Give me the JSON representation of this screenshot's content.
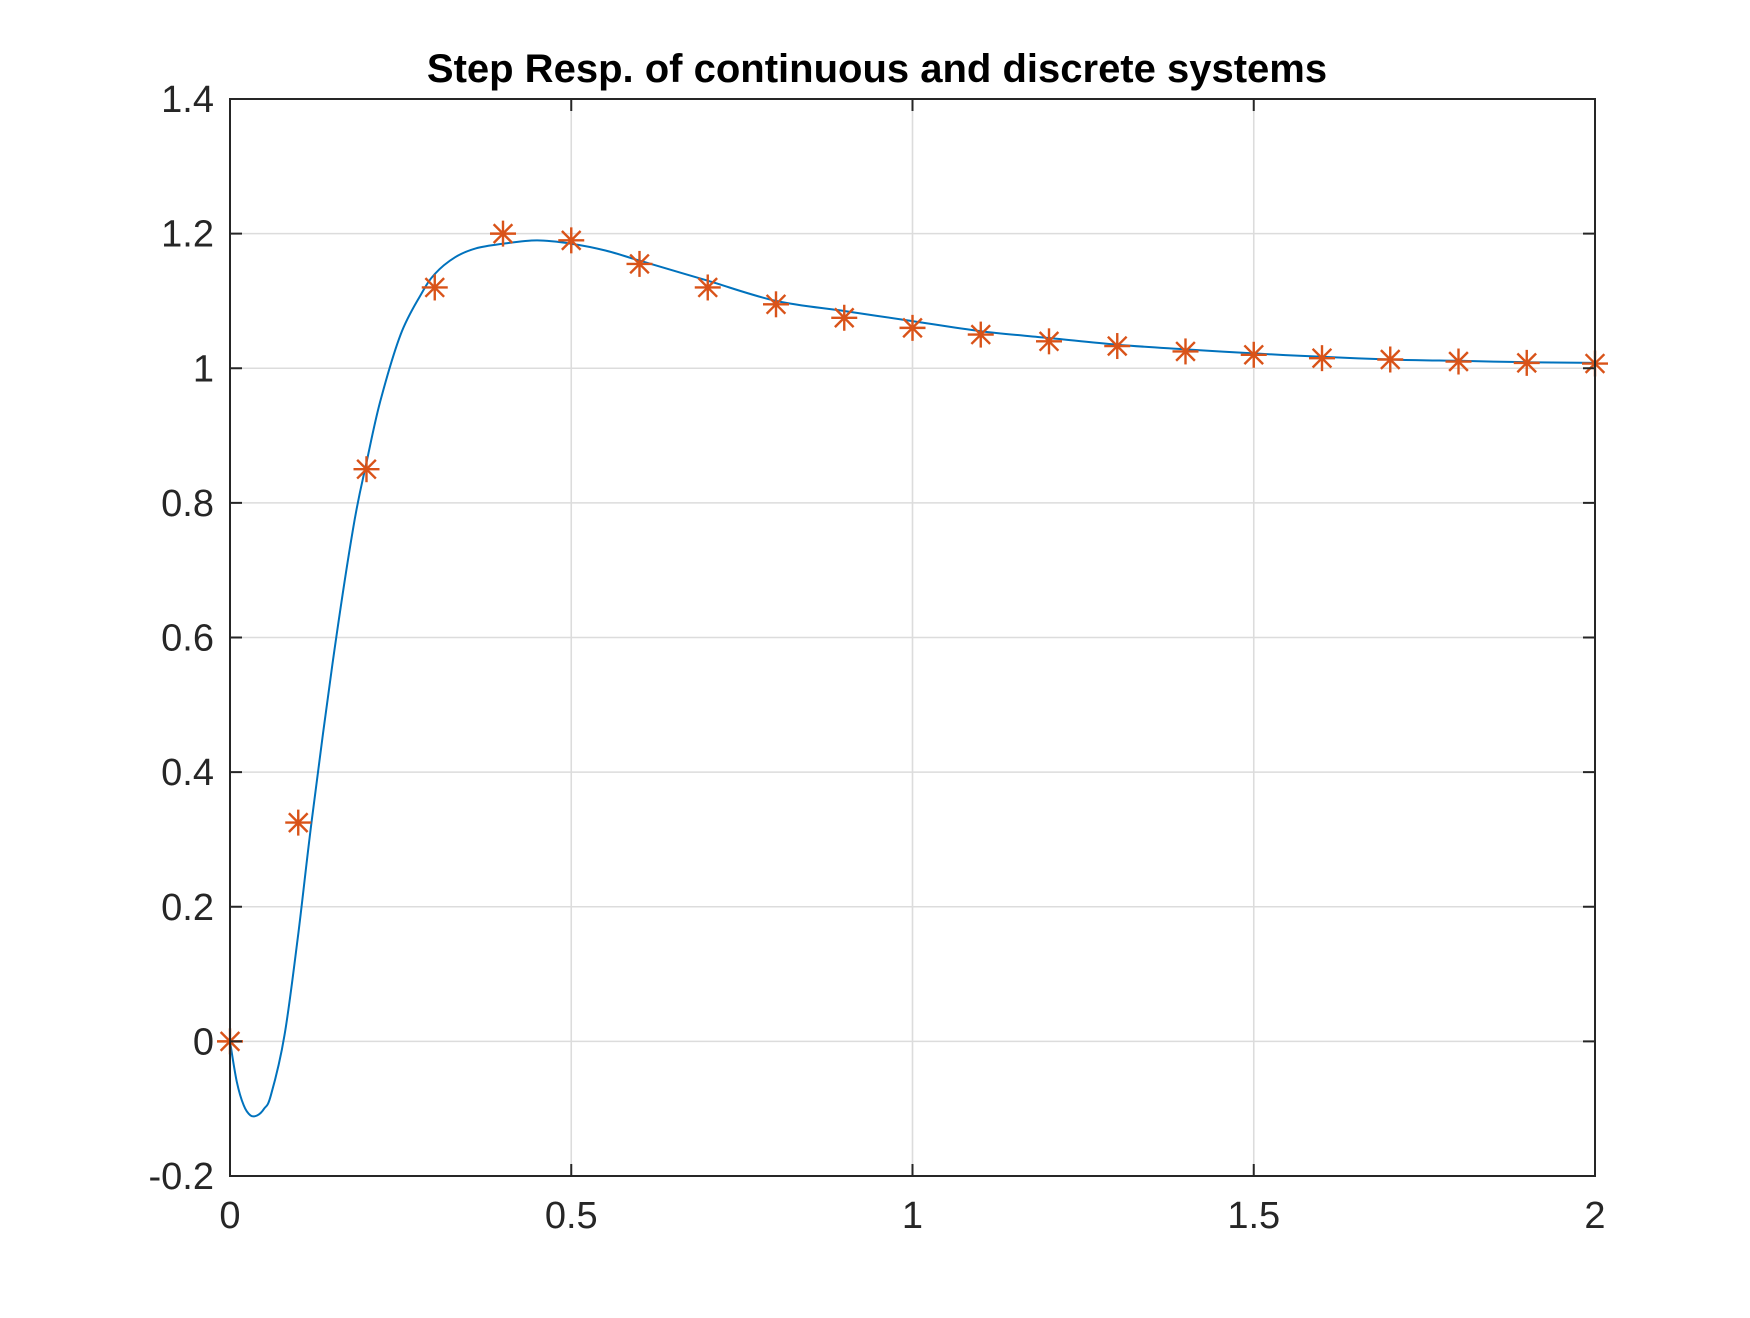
{
  "chart_data": {
    "type": "line",
    "title": "Step Resp.  of continuous and discrete systems",
    "xlabel": "",
    "ylabel": "",
    "xlim": [
      0,
      2
    ],
    "ylim": [
      -0.2,
      1.4
    ],
    "x_ticks": [
      0,
      0.5,
      1,
      1.5,
      2
    ],
    "x_tick_labels": [
      "0",
      "0.5",
      "1",
      "1.5",
      "2"
    ],
    "y_ticks": [
      -0.2,
      0,
      0.2,
      0.4,
      0.6,
      0.8,
      1,
      1.2,
      1.4
    ],
    "y_tick_labels": [
      "-0.2",
      "0",
      "0.2",
      "0.4",
      "0.6",
      "0.8",
      "1",
      "1.2",
      "1.4"
    ],
    "grid": true,
    "legend": "none",
    "series": [
      {
        "type": "line",
        "color": "#0072bd",
        "x": [
          0,
          0.01,
          0.02,
          0.03,
          0.04,
          0.05,
          0.06,
          0.08,
          0.1,
          0.12,
          0.15,
          0.18,
          0.2,
          0.22,
          0.25,
          0.28,
          0.3,
          0.33,
          0.36,
          0.4,
          0.45,
          0.5,
          0.55,
          0.6,
          0.7,
          0.8,
          0.9,
          1.0,
          1.1,
          1.2,
          1.3,
          1.4,
          1.5,
          1.6,
          1.7,
          1.8,
          1.9,
          2.0
        ],
        "y": [
          0,
          -0.06,
          -0.095,
          -0.11,
          -0.11,
          -0.1,
          -0.08,
          0.01,
          0.16,
          0.33,
          0.56,
          0.76,
          0.86,
          0.95,
          1.05,
          1.11,
          1.14,
          1.165,
          1.178,
          1.185,
          1.19,
          1.185,
          1.175,
          1.16,
          1.13,
          1.1,
          1.085,
          1.07,
          1.055,
          1.045,
          1.035,
          1.028,
          1.022,
          1.017,
          1.013,
          1.011,
          1.009,
          1.008
        ]
      },
      {
        "type": "scatter",
        "marker": "asterisk",
        "color": "#d95319",
        "x": [
          0,
          0.1,
          0.2,
          0.3,
          0.4,
          0.5,
          0.6,
          0.7,
          0.8,
          0.9,
          1.0,
          1.1,
          1.2,
          1.3,
          1.4,
          1.5,
          1.6,
          1.7,
          1.8,
          1.9,
          2.0
        ],
        "y": [
          0,
          0.325,
          0.85,
          1.12,
          1.2,
          1.19,
          1.155,
          1.12,
          1.095,
          1.075,
          1.06,
          1.05,
          1.04,
          1.033,
          1.025,
          1.02,
          1.015,
          1.013,
          1.01,
          1.008,
          1.007
        ]
      }
    ]
  }
}
